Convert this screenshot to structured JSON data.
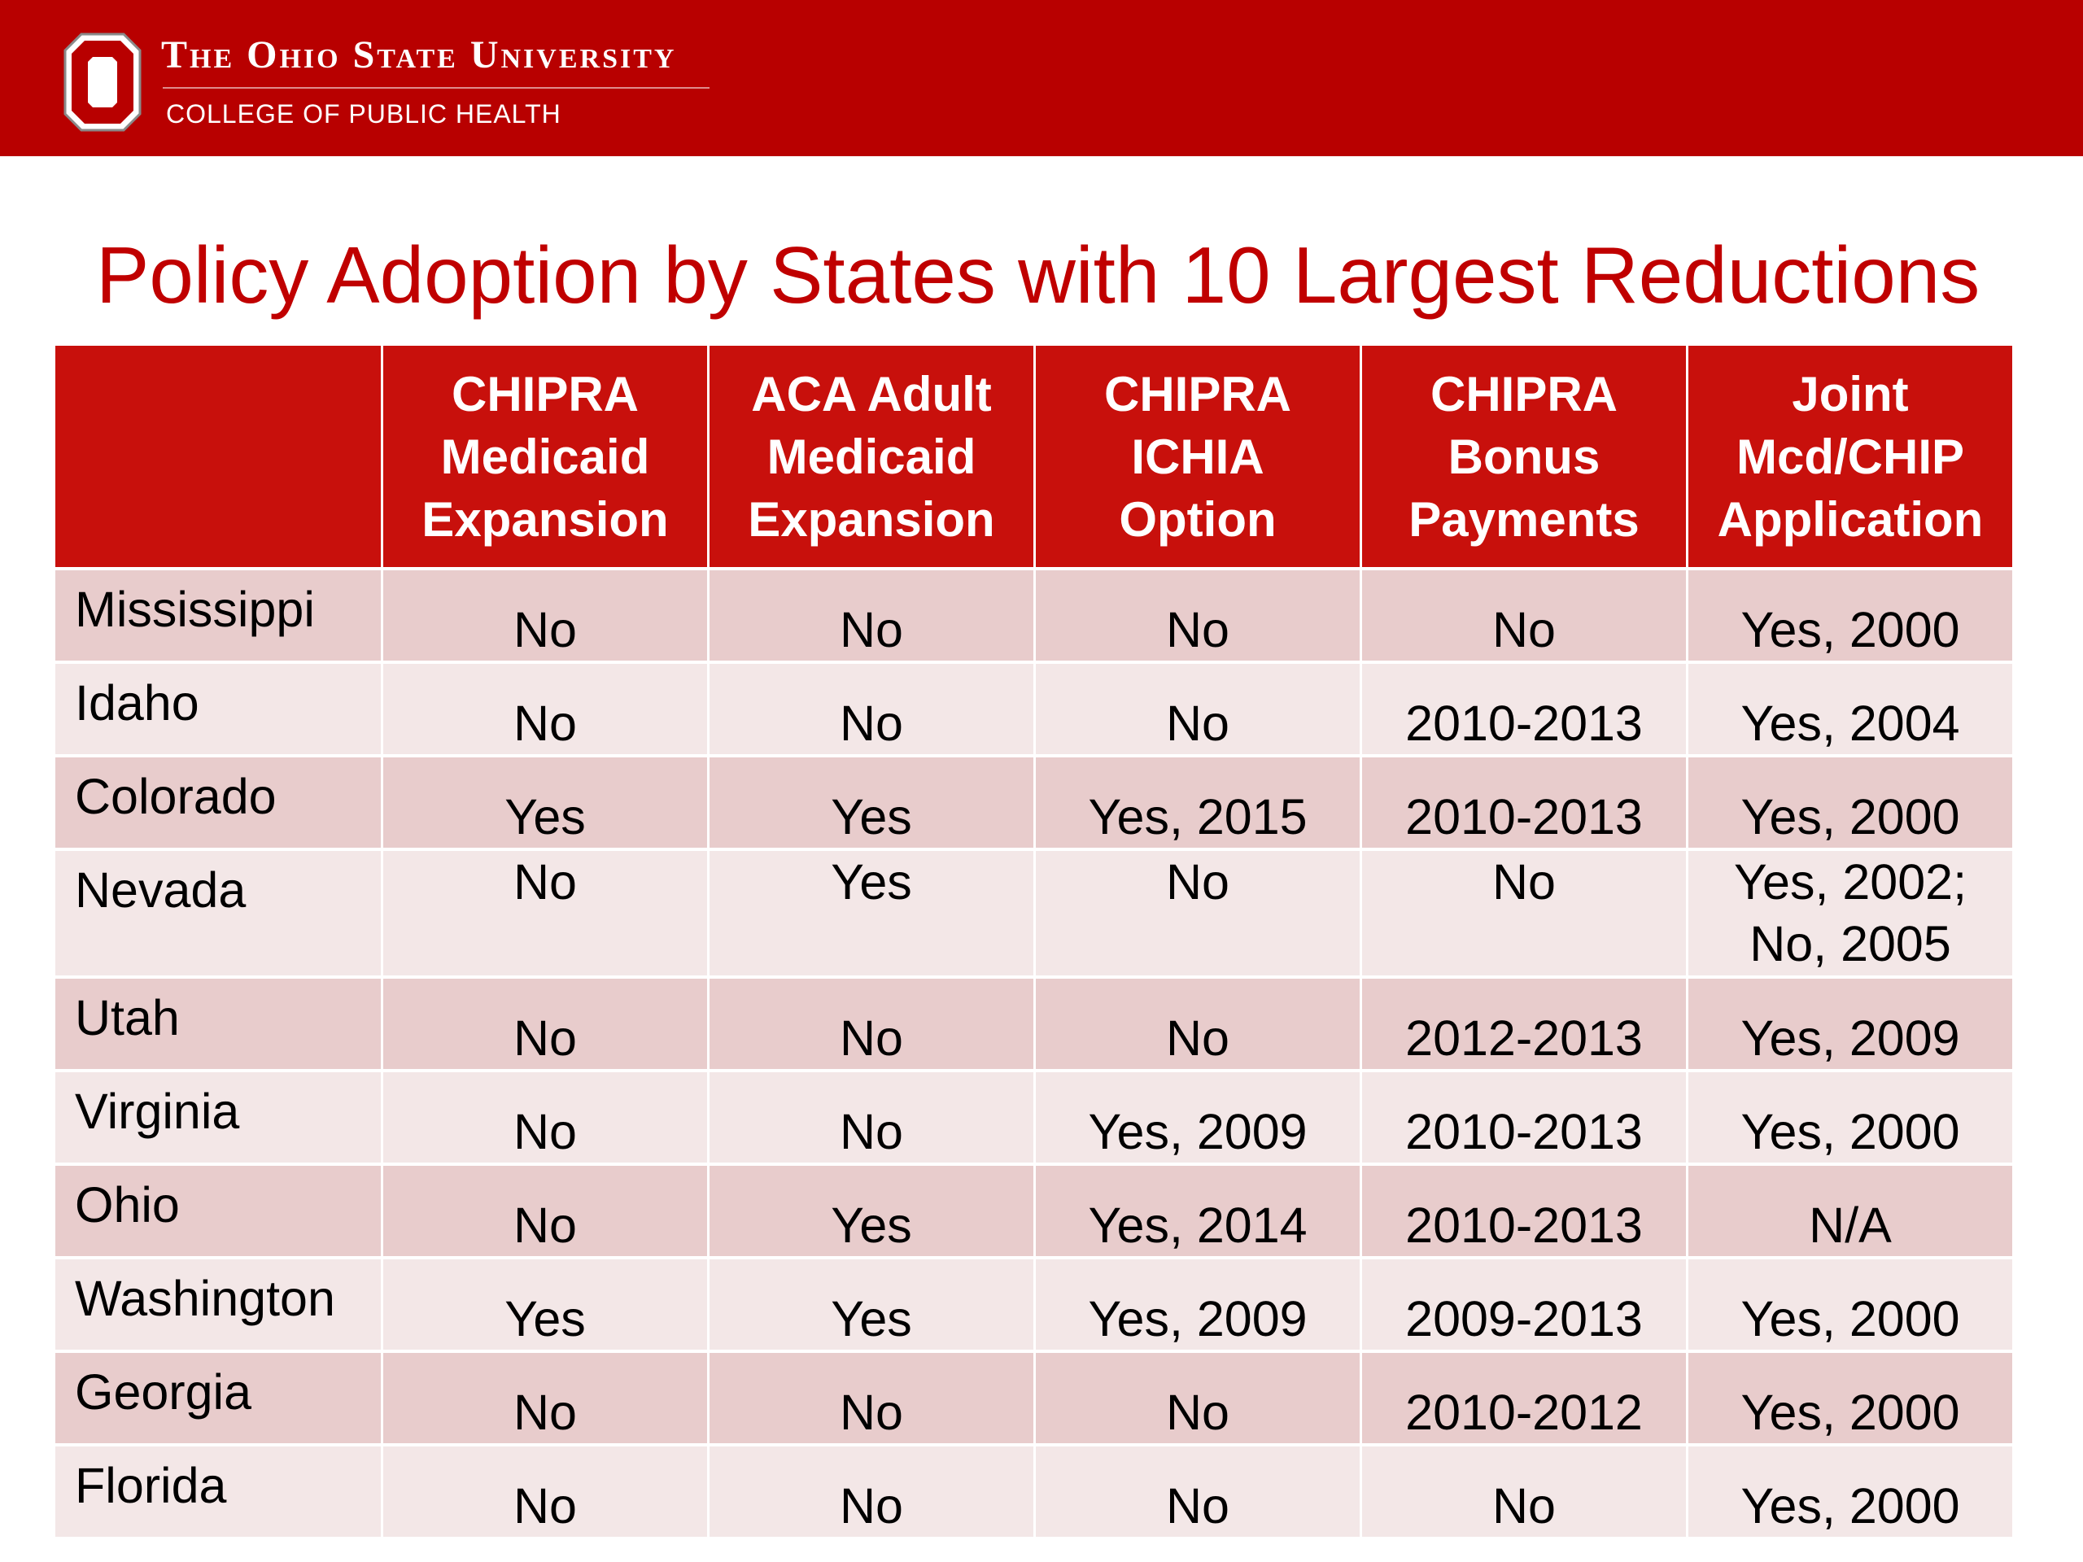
{
  "header": {
    "university": "The Ohio State University",
    "college": "COLLEGE OF PUBLIC HEALTH",
    "logo_icon": "block-o-logo-icon",
    "banner_color": "#b80000"
  },
  "title": "Policy Adoption by States with 10 Largest Reductions",
  "table": {
    "header_color": "#c8100c",
    "columns": [
      {
        "lines": [
          "",
          "",
          ""
        ]
      },
      {
        "lines": [
          "CHIPRA",
          "Medicaid",
          "Expansion"
        ]
      },
      {
        "lines": [
          "ACA Adult",
          "Medicaid",
          "Expansion"
        ]
      },
      {
        "lines": [
          "CHIPRA",
          "ICHIA",
          "Option"
        ]
      },
      {
        "lines": [
          "CHIPRA",
          "Bonus",
          "Payments"
        ]
      },
      {
        "lines": [
          "Joint",
          "Mcd/CHIP",
          "Application"
        ]
      }
    ],
    "rows": [
      {
        "state": "Mississippi",
        "cells": [
          "No",
          "No",
          "No",
          "No",
          "Yes, 2000"
        ]
      },
      {
        "state": "Idaho",
        "cells": [
          "No",
          "No",
          "No",
          "2010-2013",
          "Yes, 2004"
        ]
      },
      {
        "state": "Colorado",
        "cells": [
          "Yes",
          "Yes",
          "Yes, 2015",
          "2010-2013",
          "Yes, 2000"
        ]
      },
      {
        "state": "Nevada",
        "cells": [
          "No",
          "Yes",
          "No",
          "No",
          "Yes, 2002;"
        ],
        "cell5_line2": "No, 2005"
      },
      {
        "state": "Utah",
        "cells": [
          "No",
          "No",
          "No",
          "2012-2013",
          "Yes, 2009"
        ]
      },
      {
        "state": "Virginia",
        "cells": [
          "No",
          "No",
          "Yes, 2009",
          "2010-2013",
          "Yes, 2000"
        ]
      },
      {
        "state": "Ohio",
        "cells": [
          "No",
          "Yes",
          "Yes, 2014",
          "2010-2013",
          "N/A"
        ]
      },
      {
        "state": "Washington",
        "cells": [
          "Yes",
          "Yes",
          "Yes, 2009",
          "2009-2013",
          "Yes, 2000"
        ]
      },
      {
        "state": "Georgia",
        "cells": [
          "No",
          "No",
          "No",
          "2010-2012",
          "Yes, 2000"
        ]
      },
      {
        "state": "Florida",
        "cells": [
          "No",
          "No",
          "No",
          "No",
          "Yes, 2000"
        ]
      }
    ]
  }
}
